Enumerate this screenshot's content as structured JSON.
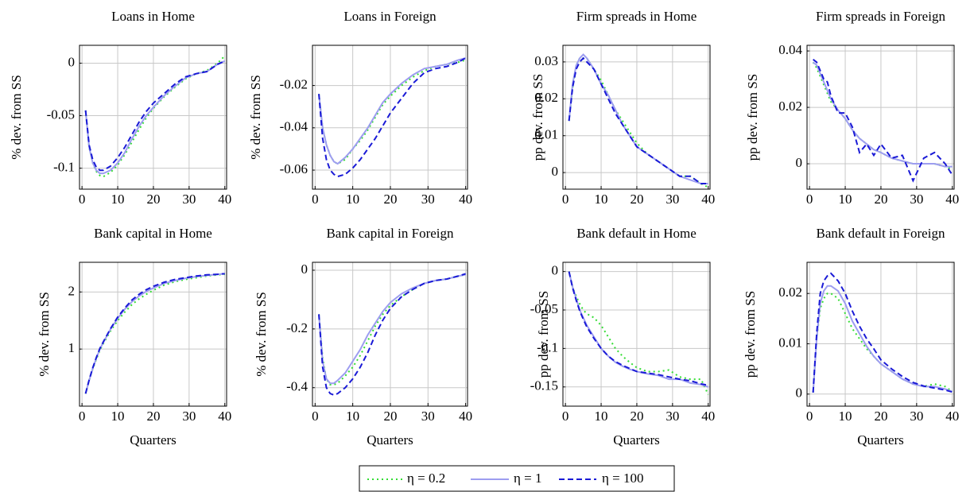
{
  "chart_data": [
    {
      "type": "line",
      "title": "Loans in Home",
      "ylabel": "% dev. from SS",
      "x": [
        1,
        2,
        3,
        4,
        5,
        6,
        8,
        10,
        12,
        14,
        16,
        18,
        20,
        23,
        26,
        29,
        32,
        35,
        38,
        40
      ],
      "xlim": [
        -0.7,
        40.5
      ],
      "xticks": [
        0,
        10,
        20,
        30,
        40
      ],
      "ylim": [
        -0.12,
        0.017
      ],
      "yticks": [
        -0.1,
        -0.05,
        0
      ],
      "grid": true,
      "series": [
        {
          "values": [
            -0.045,
            -0.08,
            -0.095,
            -0.103,
            -0.107,
            -0.108,
            -0.104,
            -0.097,
            -0.087,
            -0.075,
            -0.063,
            -0.052,
            -0.043,
            -0.032,
            -0.023,
            -0.015,
            -0.01,
            -0.007,
            0,
            0.007
          ]
        },
        {
          "values": [
            -0.045,
            -0.08,
            -0.095,
            -0.102,
            -0.105,
            -0.105,
            -0.102,
            -0.095,
            -0.085,
            -0.072,
            -0.06,
            -0.05,
            -0.042,
            -0.031,
            -0.022,
            -0.014,
            -0.01,
            -0.008,
            -0.001,
            0.002
          ]
        },
        {
          "values": [
            -0.045,
            -0.078,
            -0.092,
            -0.099,
            -0.102,
            -0.102,
            -0.098,
            -0.09,
            -0.08,
            -0.068,
            -0.056,
            -0.046,
            -0.038,
            -0.029,
            -0.02,
            -0.013,
            -0.01,
            -0.008,
            -0.001,
            0.002
          ]
        }
      ]
    },
    {
      "type": "line",
      "title": "Loans in Foreign",
      "ylabel": "% dev. from SS",
      "x": [
        1,
        2,
        3,
        4,
        5,
        6,
        8,
        10,
        12,
        14,
        16,
        18,
        20,
        23,
        26,
        29,
        32,
        35,
        38,
        40
      ],
      "xlim": [
        -0.7,
        40.5
      ],
      "xticks": [
        0,
        10,
        20,
        30,
        40
      ],
      "ylim": [
        -0.069,
        -0.001
      ],
      "yticks": [
        -0.06,
        -0.04,
        -0.02
      ],
      "grid": true,
      "series": [
        {
          "values": [
            -0.024,
            -0.04,
            -0.048,
            -0.053,
            -0.056,
            -0.057,
            -0.055,
            -0.05,
            -0.046,
            -0.041,
            -0.035,
            -0.029,
            -0.025,
            -0.02,
            -0.016,
            -0.013,
            -0.011,
            -0.01,
            -0.009,
            -0.008
          ]
        },
        {
          "values": [
            -0.024,
            -0.04,
            -0.048,
            -0.053,
            -0.056,
            -0.057,
            -0.054,
            -0.05,
            -0.045,
            -0.04,
            -0.034,
            -0.028,
            -0.024,
            -0.019,
            -0.015,
            -0.012,
            -0.011,
            -0.01,
            -0.008,
            -0.007
          ]
        },
        {
          "values": [
            -0.024,
            -0.045,
            -0.055,
            -0.06,
            -0.062,
            -0.063,
            -0.062,
            -0.059,
            -0.055,
            -0.05,
            -0.045,
            -0.039,
            -0.033,
            -0.026,
            -0.019,
            -0.014,
            -0.012,
            -0.011,
            -0.009,
            -0.007
          ]
        }
      ]
    },
    {
      "type": "line",
      "title": "Firm spreads in Home",
      "ylabel": "pp dev. from SS",
      "x": [
        1,
        2,
        3,
        4,
        5,
        6,
        8,
        10,
        12,
        14,
        16,
        18,
        20,
        23,
        26,
        29,
        32,
        35,
        38,
        40
      ],
      "xlim": [
        -0.7,
        40.5
      ],
      "xticks": [
        0,
        10,
        20,
        30,
        40
      ],
      "ylim": [
        -0.0045,
        0.0345
      ],
      "yticks": [
        0,
        0.01,
        0.02,
        0.03
      ],
      "grid": true,
      "series": [
        {
          "values": [
            0.014,
            0.023,
            0.029,
            0.031,
            0.031,
            0.031,
            0.028,
            0.025,
            0.021,
            0.017,
            0.014,
            0.011,
            0.008,
            0.005,
            0.003,
            0.001,
            -0.001,
            -0.001,
            -0.003,
            -0.004
          ]
        },
        {
          "values": [
            0.014,
            0.024,
            0.029,
            0.031,
            0.032,
            0.031,
            0.028,
            0.024,
            0.021,
            0.017,
            0.013,
            0.01,
            0.007,
            0.005,
            0.003,
            0.001,
            -0.001,
            -0.002,
            -0.003,
            -0.003
          ]
        },
        {
          "values": [
            0.014,
            0.023,
            0.028,
            0.03,
            0.031,
            0.03,
            0.028,
            0.024,
            0.02,
            0.016,
            0.013,
            0.01,
            0.007,
            0.005,
            0.003,
            0.001,
            -0.001,
            -0.001,
            -0.003,
            -0.003
          ]
        }
      ]
    },
    {
      "type": "line",
      "title": "Firm spreads in Foreign",
      "ylabel": "pp dev. from SS",
      "x": [
        1,
        2,
        3,
        4,
        5,
        6,
        8,
        10,
        12,
        14,
        16,
        18,
        20,
        23,
        26,
        29,
        32,
        35,
        38,
        40
      ],
      "xlim": [
        -0.7,
        40.5
      ],
      "xticks": [
        0,
        10,
        20,
        30,
        40
      ],
      "ylim": [
        -0.009,
        0.042
      ],
      "yticks": [
        0,
        0.02,
        0.04
      ],
      "grid": true,
      "series": [
        {
          "values": [
            0.036,
            0.034,
            0.031,
            0.028,
            0.025,
            0.022,
            0.019,
            0.016,
            0.012,
            0.009,
            0.007,
            0.005,
            0.004,
            0.002,
            0.001,
            0,
            0,
            0,
            -0.001,
            -0.002
          ]
        },
        {
          "values": [
            0.036,
            0.035,
            0.032,
            0.029,
            0.026,
            0.023,
            0.019,
            0.016,
            0.012,
            0.009,
            0.007,
            0.005,
            0.004,
            0.002,
            0.001,
            0,
            0,
            0,
            -0.001,
            -0.001
          ]
        },
        {
          "values": [
            0.037,
            0.036,
            0.033,
            0.03,
            0.029,
            0.024,
            0.018,
            0.018,
            0.013,
            0.004,
            0.007,
            0.003,
            0.007,
            0.002,
            0.003,
            -0.006,
            0.002,
            0.004,
            0,
            -0.004
          ]
        }
      ]
    },
    {
      "type": "line",
      "title": "Bank capital in Home",
      "ylabel": "% dev. from SS",
      "xlabel": "Quarters",
      "x": [
        1,
        2,
        3,
        4,
        5,
        6,
        8,
        10,
        12,
        14,
        16,
        18,
        20,
        23,
        26,
        29,
        32,
        35,
        38,
        40
      ],
      "xlim": [
        -0.7,
        40.5
      ],
      "xticks": [
        0,
        10,
        20,
        30,
        40
      ],
      "ylim": [
        0,
        2.52
      ],
      "yticks": [
        1,
        2
      ],
      "grid": true,
      "series": [
        {
          "values": [
            0.22,
            0.45,
            0.65,
            0.82,
            0.98,
            1.1,
            1.32,
            1.5,
            1.65,
            1.78,
            1.88,
            1.96,
            2.03,
            2.12,
            2.18,
            2.22,
            2.25,
            2.28,
            2.3,
            2.31
          ]
        },
        {
          "values": [
            0.22,
            0.45,
            0.66,
            0.84,
            1.0,
            1.12,
            1.35,
            1.54,
            1.7,
            1.83,
            1.93,
            2.01,
            2.07,
            2.15,
            2.2,
            2.24,
            2.27,
            2.29,
            2.31,
            2.32
          ]
        },
        {
          "values": [
            0.22,
            0.46,
            0.67,
            0.85,
            1.01,
            1.13,
            1.36,
            1.56,
            1.72,
            1.86,
            1.96,
            2.04,
            2.1,
            2.17,
            2.22,
            2.25,
            2.28,
            2.3,
            2.31,
            2.32
          ]
        }
      ]
    },
    {
      "type": "line",
      "title": "Bank capital in Foreign",
      "ylabel": "% dev. from SS",
      "xlabel": "Quarters",
      "x": [
        1,
        2,
        3,
        4,
        5,
        6,
        8,
        10,
        12,
        14,
        16,
        18,
        20,
        23,
        26,
        29,
        32,
        35,
        38,
        40
      ],
      "xlim": [
        -0.7,
        40.5
      ],
      "xticks": [
        0,
        10,
        20,
        30,
        40
      ],
      "ylim": [
        -0.463,
        0.027
      ],
      "yticks": [
        -0.4,
        -0.2,
        0
      ],
      "grid": true,
      "series": [
        {
          "values": [
            -0.15,
            -0.3,
            -0.37,
            -0.39,
            -0.39,
            -0.385,
            -0.36,
            -0.33,
            -0.29,
            -0.24,
            -0.19,
            -0.15,
            -0.12,
            -0.09,
            -0.065,
            -0.045,
            -0.035,
            -0.03,
            -0.02,
            -0.015
          ]
        },
        {
          "values": [
            -0.15,
            -0.31,
            -0.37,
            -0.385,
            -0.385,
            -0.375,
            -0.35,
            -0.31,
            -0.27,
            -0.22,
            -0.18,
            -0.14,
            -0.11,
            -0.08,
            -0.06,
            -0.045,
            -0.035,
            -0.03,
            -0.02,
            -0.015
          ]
        },
        {
          "values": [
            -0.15,
            -0.33,
            -0.4,
            -0.42,
            -0.425,
            -0.42,
            -0.4,
            -0.37,
            -0.33,
            -0.28,
            -0.22,
            -0.17,
            -0.13,
            -0.09,
            -0.065,
            -0.045,
            -0.035,
            -0.03,
            -0.02,
            -0.012
          ]
        }
      ]
    },
    {
      "type": "line",
      "title": "Bank default in Home",
      "ylabel": "pp dev. from SS",
      "xlabel": "Quarters",
      "x": [
        1,
        2,
        3,
        4,
        5,
        6,
        8,
        10,
        12,
        14,
        16,
        18,
        20,
        23,
        26,
        29,
        32,
        35,
        38,
        40
      ],
      "xlim": [
        -0.7,
        40.5
      ],
      "xticks": [
        0,
        10,
        20,
        30,
        40
      ],
      "ylim": [
        -0.175,
        0.012
      ],
      "yticks": [
        -0.15,
        -0.1,
        -0.05,
        0
      ],
      "grid": true,
      "series": [
        {
          "values": [
            0,
            -0.02,
            -0.032,
            -0.042,
            -0.05,
            -0.055,
            -0.06,
            -0.07,
            -0.085,
            -0.1,
            -0.11,
            -0.118,
            -0.125,
            -0.13,
            -0.13,
            -0.128,
            -0.137,
            -0.14,
            -0.14,
            -0.16
          ]
        },
        {
          "values": [
            0,
            -0.02,
            -0.035,
            -0.05,
            -0.06,
            -0.07,
            -0.085,
            -0.1,
            -0.11,
            -0.118,
            -0.123,
            -0.127,
            -0.13,
            -0.133,
            -0.135,
            -0.14,
            -0.14,
            -0.145,
            -0.147,
            -0.15
          ]
        },
        {
          "values": [
            0,
            -0.021,
            -0.037,
            -0.051,
            -0.062,
            -0.072,
            -0.087,
            -0.1,
            -0.11,
            -0.117,
            -0.122,
            -0.126,
            -0.13,
            -0.132,
            -0.134,
            -0.137,
            -0.14,
            -0.142,
            -0.146,
            -0.148
          ]
        }
      ]
    },
    {
      "type": "line",
      "title": "Bank default in Foreign",
      "ylabel": "pp dev. from SS",
      "xlabel": "Quarters",
      "x": [
        1,
        2,
        3,
        4,
        5,
        6,
        8,
        10,
        12,
        14,
        16,
        18,
        20,
        23,
        26,
        29,
        32,
        35,
        38,
        40
      ],
      "xlim": [
        -0.7,
        40.5
      ],
      "xticks": [
        0,
        10,
        20,
        30,
        40
      ],
      "ylim": [
        -0.0024,
        0.0262
      ],
      "yticks": [
        0,
        0.01,
        0.02
      ],
      "grid": true,
      "series": [
        {
          "values": [
            0.0003,
            0.011,
            0.017,
            0.019,
            0.02,
            0.02,
            0.019,
            0.016,
            0.013,
            0.011,
            0.009,
            0.0075,
            0.006,
            0.0045,
            0.003,
            0.002,
            0.0015,
            0.002,
            0.0015,
            0.0005
          ]
        },
        {
          "values": [
            0.0003,
            0.011,
            0.018,
            0.0205,
            0.0215,
            0.0215,
            0.0205,
            0.018,
            0.0145,
            0.012,
            0.0095,
            0.0075,
            0.006,
            0.0045,
            0.003,
            0.002,
            0.0015,
            0.0015,
            0.001,
            0.0005
          ]
        },
        {
          "values": [
            0.0003,
            0.012,
            0.02,
            0.0225,
            0.0235,
            0.024,
            0.0225,
            0.02,
            0.0165,
            0.0135,
            0.011,
            0.009,
            0.0068,
            0.005,
            0.0035,
            0.0023,
            0.0016,
            0.0012,
            0.0008,
            0.0004
          ]
        }
      ]
    }
  ],
  "legend": [
    {
      "name": "η = 0.2",
      "color": "#33dd33",
      "dash": "dotted"
    },
    {
      "name": "η = 1",
      "color": "#9d9df0",
      "dash": "solid"
    },
    {
      "name": "η = 100",
      "color": "#1a1ad6",
      "dash": "dashed"
    }
  ]
}
